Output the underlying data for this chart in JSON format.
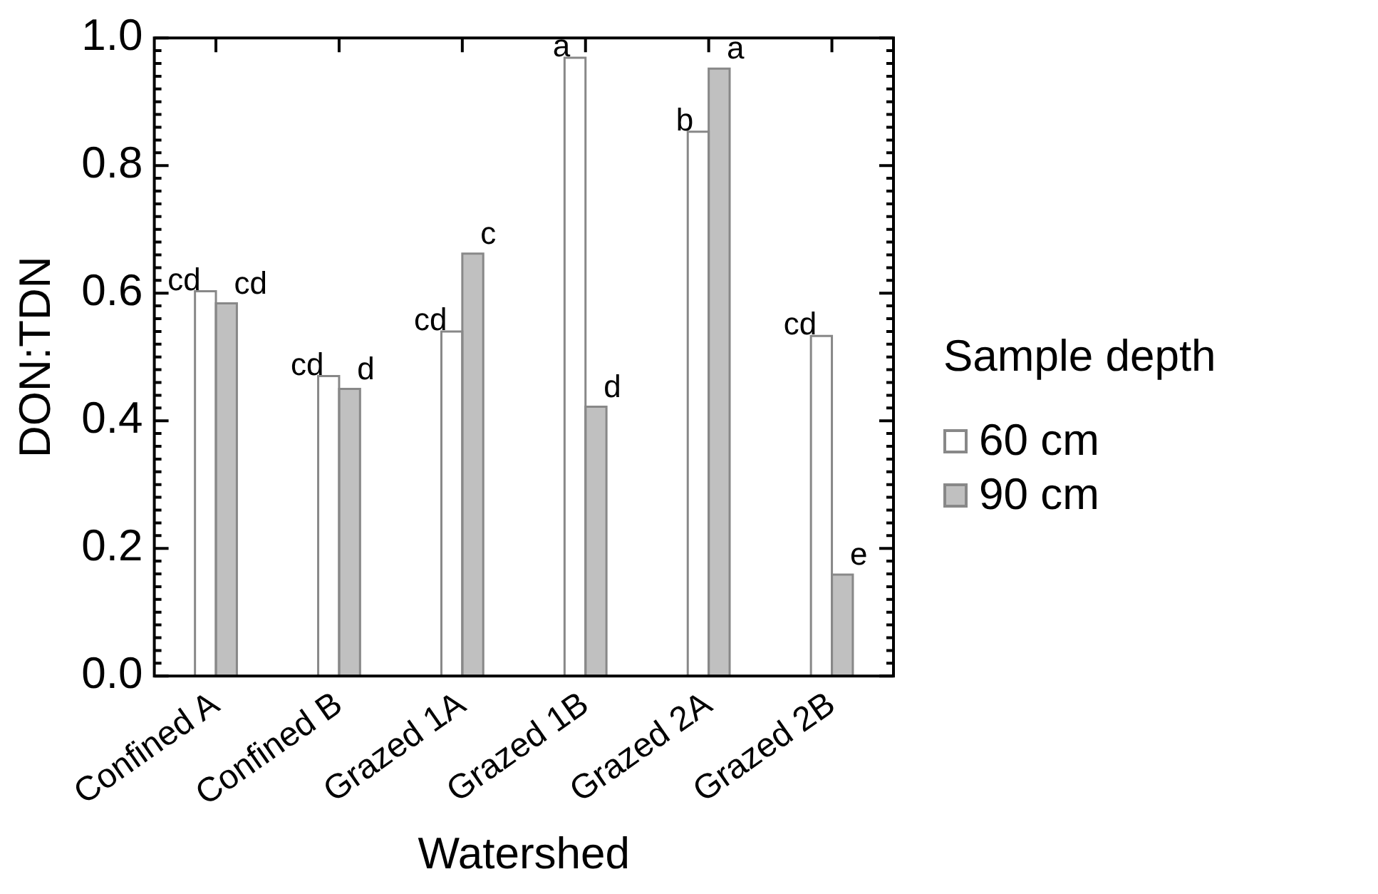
{
  "chart_data": {
    "type": "bar",
    "xlabel": "Watershed",
    "ylabel": "DON:TDN",
    "legend_title": "Sample depth",
    "legend": "right",
    "grid": false,
    "categories": [
      "Confined A",
      "Confined B",
      "Grazed 1A",
      "Grazed 1B",
      "Grazed 2A",
      "Grazed 2B"
    ],
    "series": [
      {
        "name": "60 cm",
        "color": "#ffffff",
        "values": [
          0.603,
          0.47,
          0.54,
          0.969,
          0.853,
          0.533
        ]
      },
      {
        "name": "90 cm",
        "color": "#c0c0c0",
        "values": [
          0.584,
          0.45,
          0.662,
          0.422,
          0.952,
          0.159
        ]
      }
    ],
    "ylim": [
      0,
      1
    ],
    "yticks": [
      {
        "value": 0,
        "label": "0.0"
      },
      {
        "value": 0.2,
        "label": "0.2"
      },
      {
        "value": 0.4,
        "label": "0.4"
      },
      {
        "value": 0.6,
        "label": "0.6"
      },
      {
        "value": 0.8,
        "label": "0.8"
      },
      {
        "value": 1,
        "label": "1.0"
      }
    ],
    "annotations": [
      {
        "text": "cd",
        "x": "Confined A",
        "y": 0.603
      },
      {
        "text": "cd",
        "x": "Confined A",
        "y": 0.584
      },
      {
        "text": "cd",
        "x": "Confined B",
        "y": 0.47
      },
      {
        "text": "d",
        "x": "Confined B",
        "y": 0.45
      },
      {
        "text": "cd",
        "x": "Grazed 1A",
        "y": 0.54
      },
      {
        "text": "c",
        "x": "Grazed 1A",
        "y": 0.662
      },
      {
        "text": "a",
        "x": "Grazed 1B",
        "y": 0.969
      },
      {
        "text": "d",
        "x": "Grazed 1B",
        "y": 0.422
      },
      {
        "text": "b",
        "x": "Grazed 2A",
        "y": 0.853
      },
      {
        "text": "a",
        "x": "Grazed 2A",
        "y": 0.952
      },
      {
        "text": "cd",
        "x": "Grazed 2B",
        "y": 0.533
      },
      {
        "text": "e",
        "x": "Grazed 2B",
        "y": 0.159
      }
    ]
  }
}
